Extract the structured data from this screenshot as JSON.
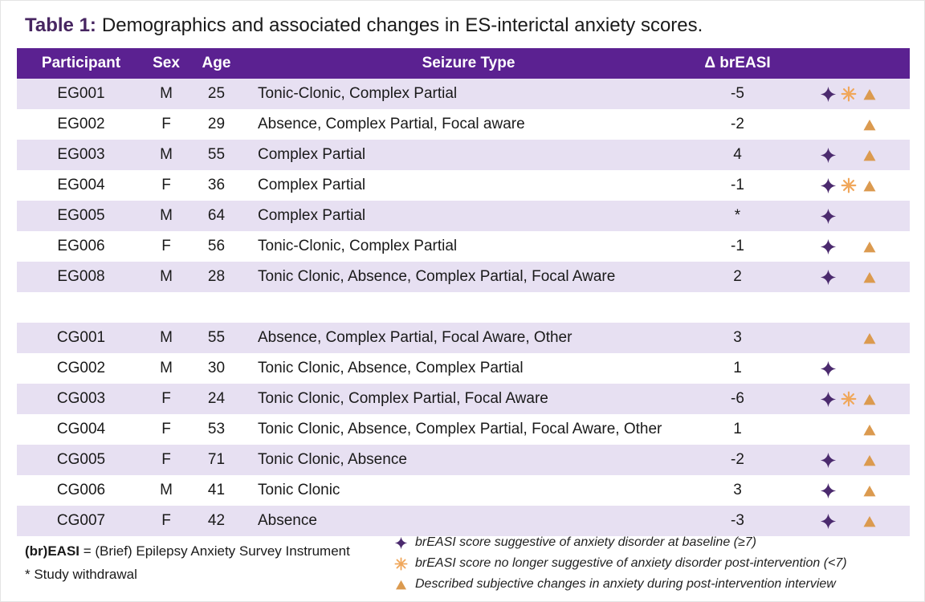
{
  "title": {
    "prefix": "Table 1:",
    "text": "Demographics and associated changes in ES-interictal anxiety scores."
  },
  "colors": {
    "header_bg": "#5B2191",
    "row_stripe": "#E7E0F2",
    "title_accent": "#472661",
    "star": "#4B2A6E",
    "asterisk": "#F0A75B",
    "triangle": "#DB9A4F"
  },
  "table": {
    "headers": {
      "participant": "Participant",
      "sex": "Sex",
      "age": "Age",
      "seizure_type": "Seizure Type",
      "delta_breasi": "Δ brEASI"
    },
    "groups": [
      {
        "name": "experimental-group",
        "rows": [
          {
            "participant": "EG001",
            "sex": "M",
            "age": "25",
            "seizure_type": "Tonic-Clonic, Complex Partial",
            "delta_breasi": "-5",
            "star": true,
            "asterisk": true,
            "triangle": true
          },
          {
            "participant": "EG002",
            "sex": "F",
            "age": "29",
            "seizure_type": "Absence, Complex Partial, Focal aware",
            "delta_breasi": "-2",
            "star": false,
            "asterisk": false,
            "triangle": true
          },
          {
            "participant": "EG003",
            "sex": "M",
            "age": "55",
            "seizure_type": "Complex Partial",
            "delta_breasi": "4",
            "star": true,
            "asterisk": false,
            "triangle": true
          },
          {
            "participant": "EG004",
            "sex": "F",
            "age": "36",
            "seizure_type": "Complex Partial",
            "delta_breasi": "-1",
            "star": true,
            "asterisk": true,
            "triangle": true
          },
          {
            "participant": "EG005",
            "sex": "M",
            "age": "64",
            "seizure_type": "Complex Partial",
            "delta_breasi": "*",
            "star": true,
            "asterisk": false,
            "triangle": false
          },
          {
            "participant": "EG006",
            "sex": "F",
            "age": "56",
            "seizure_type": "Tonic-Clonic, Complex Partial",
            "delta_breasi": "-1",
            "star": true,
            "asterisk": false,
            "triangle": true
          },
          {
            "participant": "EG008",
            "sex": "M",
            "age": "28",
            "seizure_type": "Tonic Clonic, Absence, Complex Partial, Focal Aware",
            "delta_breasi": "2",
            "star": true,
            "asterisk": false,
            "triangle": true
          }
        ]
      },
      {
        "name": "control-group",
        "rows": [
          {
            "participant": "CG001",
            "sex": "M",
            "age": "55",
            "seizure_type": "Absence, Complex Partial, Focal Aware, Other",
            "delta_breasi": "3",
            "star": false,
            "asterisk": false,
            "triangle": true
          },
          {
            "participant": "CG002",
            "sex": "M",
            "age": "30",
            "seizure_type": "Tonic Clonic, Absence, Complex Partial",
            "delta_breasi": "1",
            "star": true,
            "asterisk": false,
            "triangle": false
          },
          {
            "participant": "CG003",
            "sex": "F",
            "age": "24",
            "seizure_type": "Tonic Clonic, Complex Partial, Focal Aware",
            "delta_breasi": "-6",
            "star": true,
            "asterisk": true,
            "triangle": true
          },
          {
            "participant": "CG004",
            "sex": "F",
            "age": "53",
            "seizure_type": "Tonic Clonic, Absence, Complex Partial, Focal Aware, Other",
            "delta_breasi": "1",
            "star": false,
            "asterisk": false,
            "triangle": true
          },
          {
            "participant": "CG005",
            "sex": "F",
            "age": "71",
            "seizure_type": "Tonic Clonic, Absence",
            "delta_breasi": "-2",
            "star": true,
            "asterisk": false,
            "triangle": true
          },
          {
            "participant": "CG006",
            "sex": "M",
            "age": "41",
            "seizure_type": "Tonic Clonic",
            "delta_breasi": "3",
            "star": true,
            "asterisk": false,
            "triangle": true
          },
          {
            "participant": "CG007",
            "sex": "F",
            "age": "42",
            "seizure_type": "Absence",
            "delta_breasi": "-3",
            "star": true,
            "asterisk": false,
            "triangle": true
          }
        ]
      }
    ]
  },
  "footnotes": {
    "breasi_bold": "(br)EASI",
    "breasi_rest": " = (Brief) Epilepsy Anxiety Survey Instrument",
    "withdrawal": "* Study withdrawal"
  },
  "legend": [
    {
      "icon": "star",
      "text": "brEASI score suggestive of anxiety disorder at baseline (≥7)"
    },
    {
      "icon": "asterisk",
      "text": "brEASI score no longer suggestive of anxiety disorder post-intervention (<7)"
    },
    {
      "icon": "triangle",
      "text": "Described subjective changes in anxiety during post-intervention interview"
    }
  ]
}
